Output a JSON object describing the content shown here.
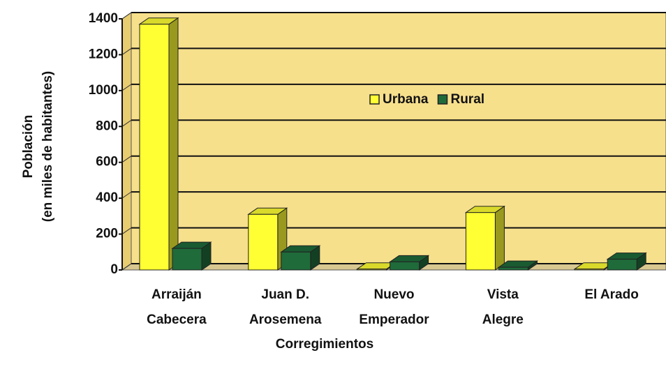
{
  "chart_data": {
    "type": "bar3d",
    "ylabel": [
      "Población",
      "(en miles de habitantes)"
    ],
    "xlabel": "Corregimientos",
    "categories": [
      [
        "Arraiján",
        "Cabecera"
      ],
      [
        "Juan D.",
        "Arosemena"
      ],
      [
        "Nuevo",
        "Emperador"
      ],
      [
        "Vista",
        "Alegre"
      ],
      [
        "El Arado"
      ]
    ],
    "series": [
      {
        "name": "Urbana",
        "color": "#ffff33",
        "values": [
          1370,
          310,
          5,
          320,
          5
        ]
      },
      {
        "name": "Rural",
        "color": "#1f6b3a",
        "values": [
          120,
          100,
          45,
          15,
          60
        ]
      }
    ],
    "ylim": [
      0,
      1400
    ],
    "yticks": [
      0,
      200,
      400,
      600,
      800,
      1000,
      1200,
      1400
    ],
    "grid": true,
    "legend": "upper center"
  }
}
